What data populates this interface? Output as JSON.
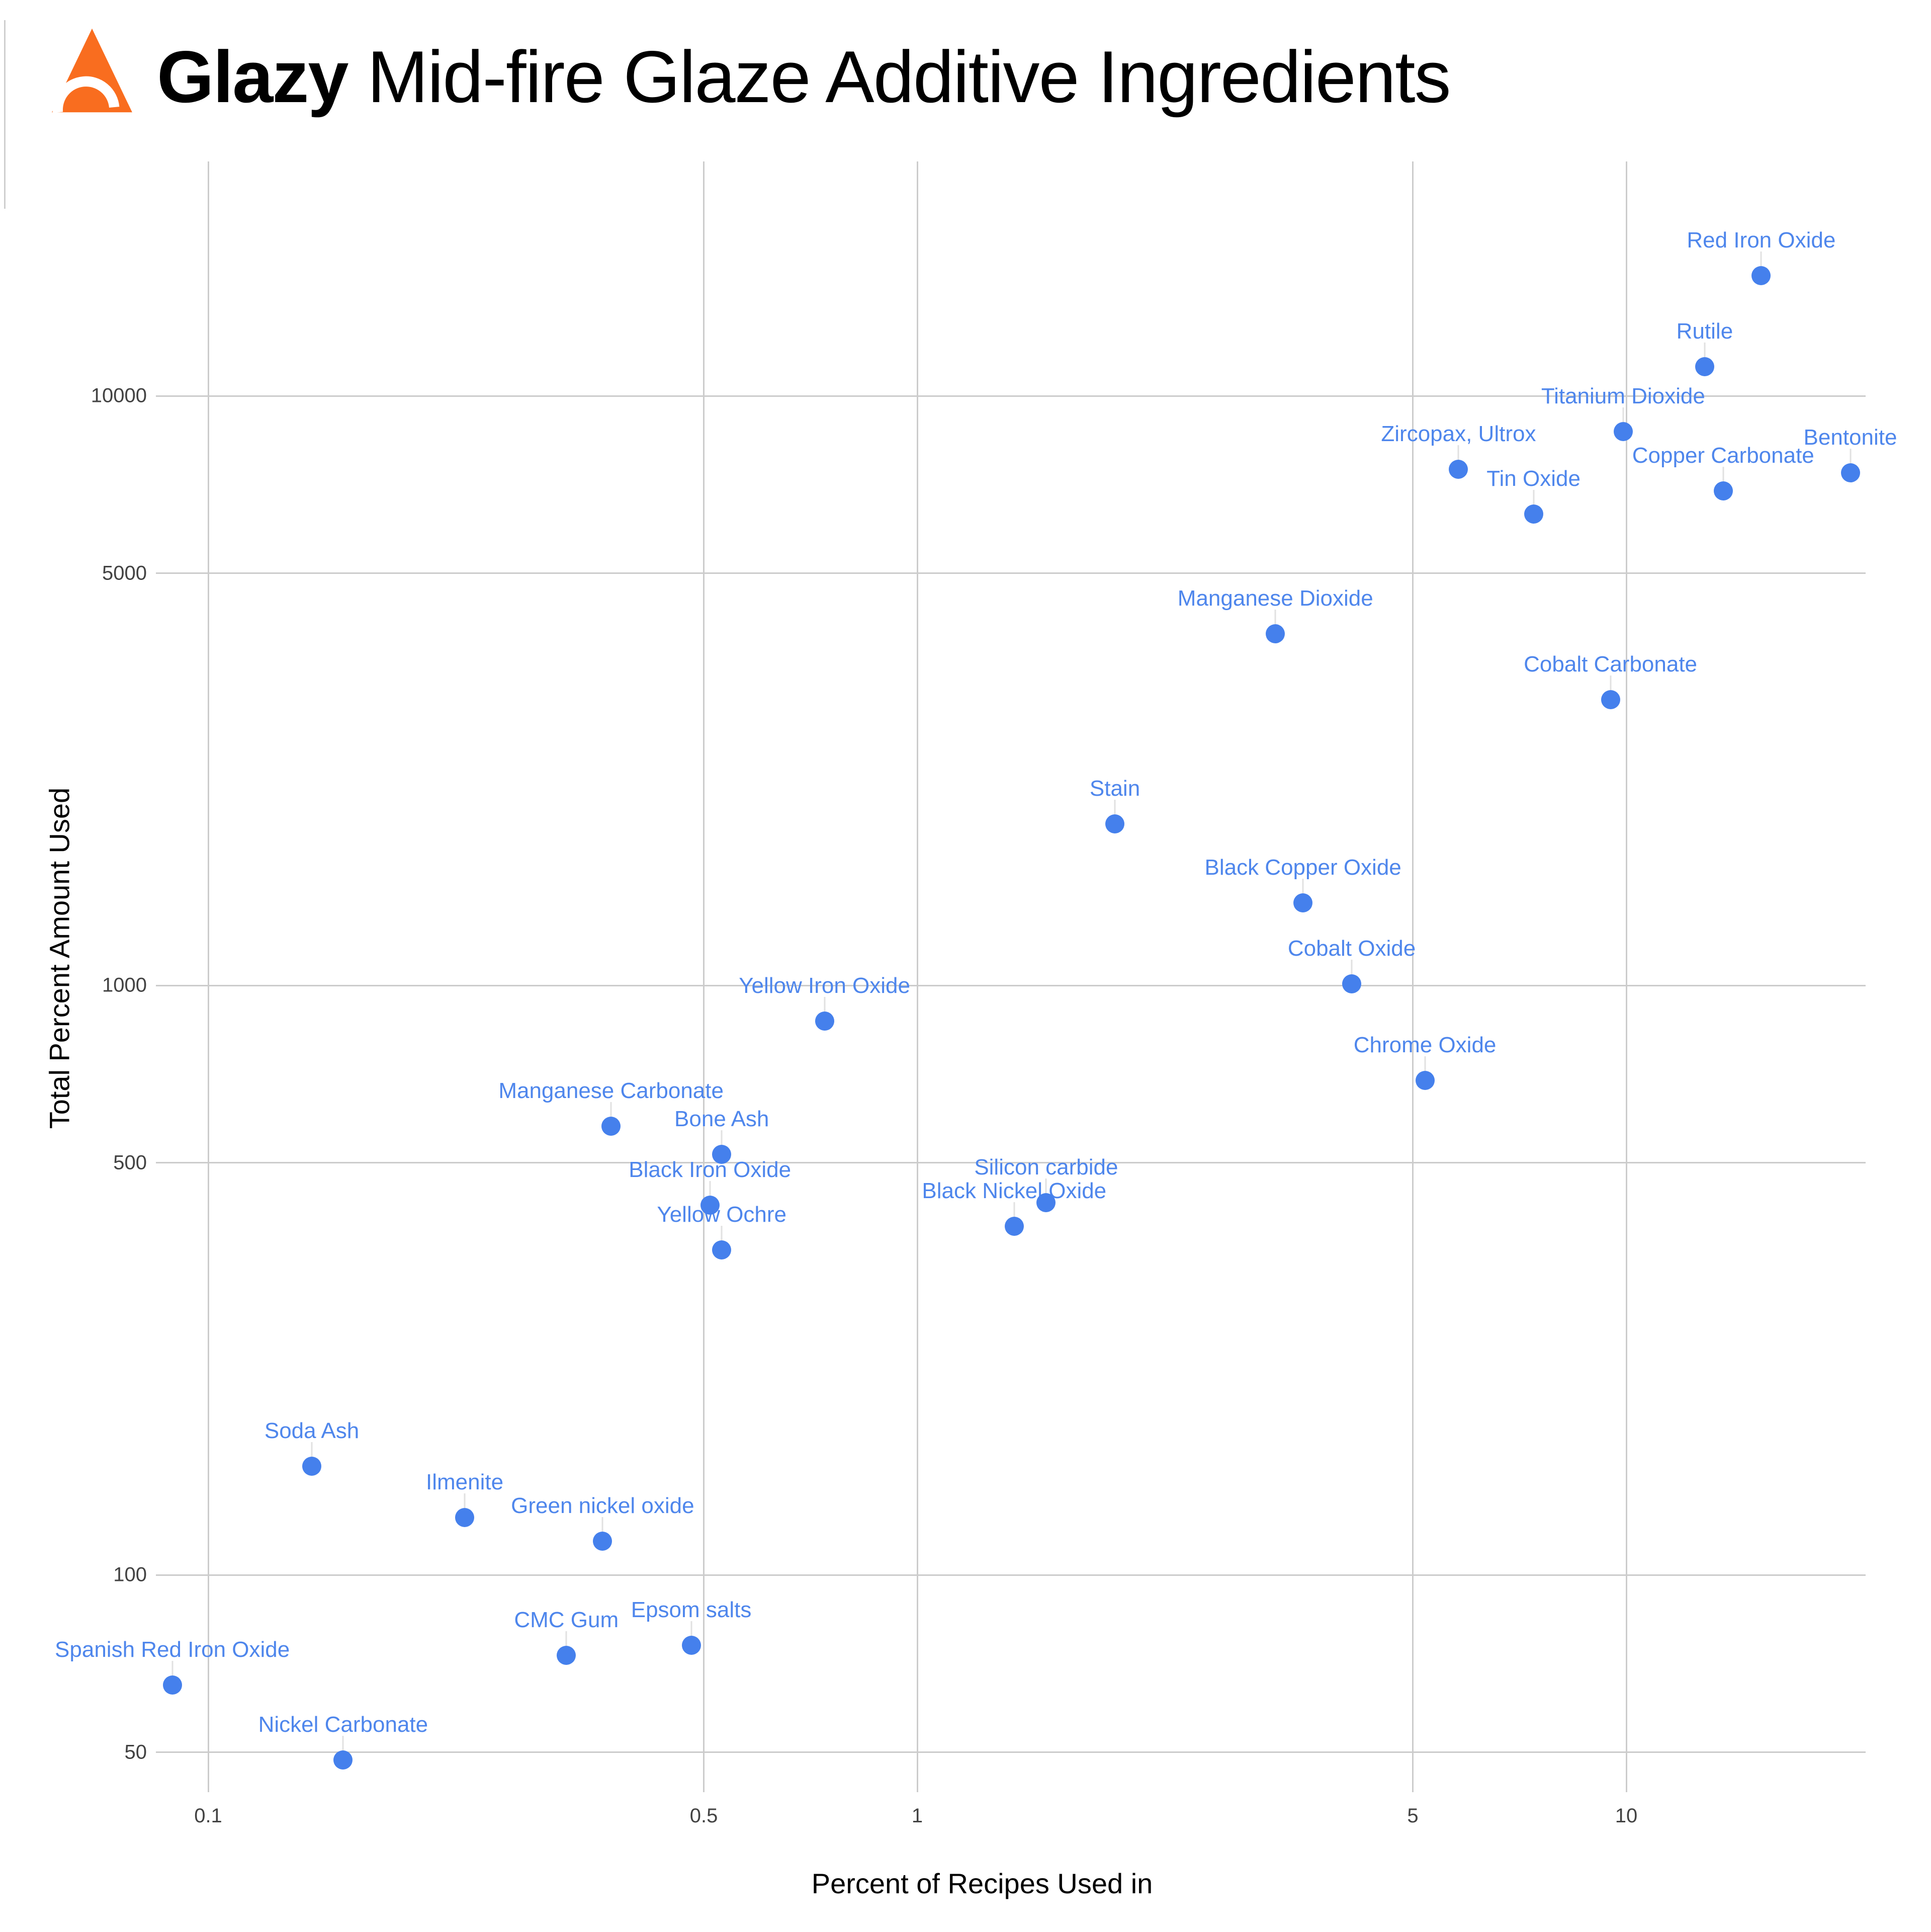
{
  "header": {
    "logo": "glazy-flame-logo",
    "title_bold": "Glazy",
    "title_rest": " Mid-fire Glaze Additive Ingredients"
  },
  "chart_data": {
    "type": "scatter",
    "title": "Glazy Mid-fire Glaze Additive Ingredients",
    "xlabel": "Percent of Recipes Used in",
    "ylabel": "Total Percent Amount Used",
    "x_scale": "log",
    "y_scale": "log",
    "grid": true,
    "legend_position": "none",
    "xlim": [
      0.084,
      22
    ],
    "ylim": [
      43,
      25000
    ],
    "x_ticks": [
      {
        "v": 0.1,
        "label": "0.1"
      },
      {
        "v": 0.5,
        "label": "0.5"
      },
      {
        "v": 1,
        "label": "1"
      },
      {
        "v": 5,
        "label": "5"
      },
      {
        "v": 10,
        "label": "10"
      }
    ],
    "y_ticks": [
      {
        "v": 50,
        "label": "50"
      },
      {
        "v": 100,
        "label": "100"
      },
      {
        "v": 500,
        "label": "500"
      },
      {
        "v": 1000,
        "label": "1000"
      },
      {
        "v": 5000,
        "label": "5000"
      },
      {
        "v": 10000,
        "label": "10000"
      }
    ],
    "points": [
      {
        "name": "Red Iron Oxide",
        "x": 15.5,
        "y": 16000
      },
      {
        "name": "Rutile",
        "x": 12.9,
        "y": 11200
      },
      {
        "name": "Titanium Dioxide",
        "x": 9.9,
        "y": 8700
      },
      {
        "name": "Zircopax, Ultrox",
        "x": 5.8,
        "y": 7500
      },
      {
        "name": "Copper Carbonate",
        "x": 13.7,
        "y": 6900
      },
      {
        "name": "Bentonite",
        "x": 20.7,
        "y": 7400
      },
      {
        "name": "Tin Oxide",
        "x": 7.4,
        "y": 6300
      },
      {
        "name": "Manganese Dioxide",
        "x": 3.2,
        "y": 3950
      },
      {
        "name": "Cobalt Carbonate",
        "x": 9.5,
        "y": 3050
      },
      {
        "name": "Stain",
        "x": 1.9,
        "y": 1880
      },
      {
        "name": "Black Copper Oxide",
        "x": 3.5,
        "y": 1380
      },
      {
        "name": "Cobalt Oxide",
        "x": 4.1,
        "y": 1005
      },
      {
        "name": "Chrome Oxide",
        "x": 5.2,
        "y": 690
      },
      {
        "name": "Yellow Iron Oxide",
        "x": 0.74,
        "y": 870
      },
      {
        "name": "Manganese Carbonate",
        "x": 0.37,
        "y": 577
      },
      {
        "name": "Bone Ash",
        "x": 0.53,
        "y": 517
      },
      {
        "name": "Black Iron Oxide",
        "x": 0.51,
        "y": 424
      },
      {
        "name": "Silicon carbide",
        "x": 1.52,
        "y": 428
      },
      {
        "name": "Black Nickel Oxide",
        "x": 1.37,
        "y": 390
      },
      {
        "name": "Yellow Ochre",
        "x": 0.53,
        "y": 356
      },
      {
        "name": "Soda Ash",
        "x": 0.14,
        "y": 153
      },
      {
        "name": "Ilmenite",
        "x": 0.23,
        "y": 125
      },
      {
        "name": "Green nickel oxide",
        "x": 0.36,
        "y": 114
      },
      {
        "name": "CMC Gum",
        "x": 0.32,
        "y": 73
      },
      {
        "name": "Epsom salts",
        "x": 0.48,
        "y": 76
      },
      {
        "name": "Spanish Red Iron Oxide",
        "x": 0.089,
        "y": 65
      },
      {
        "name": "Nickel Carbonate",
        "x": 0.155,
        "y": 48.5
      }
    ],
    "colors": {
      "dot": "#4580ec",
      "point_label": "#4e86ec",
      "gridline": "#cccccc",
      "leader_line": "#e1e1e1",
      "tick_label": "#424242",
      "logo_orange": "#f96d1f",
      "title_text": "#000000"
    }
  }
}
